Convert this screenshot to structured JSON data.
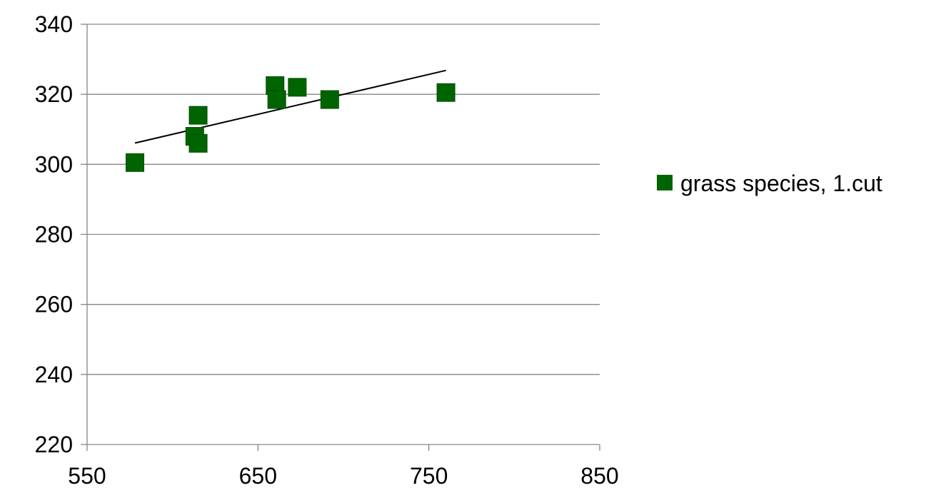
{
  "chart_data": {
    "type": "scatter",
    "title": "",
    "xlabel": "",
    "ylabel": "",
    "xlim": [
      550,
      850
    ],
    "ylim": [
      220,
      340
    ],
    "x_ticks": [
      550,
      650,
      750,
      850
    ],
    "y_ticks": [
      220,
      240,
      260,
      280,
      300,
      320,
      340
    ],
    "x_tick_labels": [
      "550",
      "650",
      "750",
      "850"
    ],
    "y_tick_labels": [
      "220",
      "240",
      "260",
      "280",
      "300",
      "320",
      "340"
    ],
    "grid": "horizontal",
    "legend": {
      "placement": "right",
      "entries": [
        "grass species, 1.cut"
      ]
    },
    "series": [
      {
        "name": "grass species, 1.cut",
        "color": "#006400",
        "marker": "square",
        "points": [
          {
            "x": 578,
            "y": 300.5
          },
          {
            "x": 613,
            "y": 308
          },
          {
            "x": 615,
            "y": 306
          },
          {
            "x": 615,
            "y": 314
          },
          {
            "x": 660,
            "y": 322.5
          },
          {
            "x": 661,
            "y": 318.5
          },
          {
            "x": 673,
            "y": 322
          },
          {
            "x": 692,
            "y": 318.5
          },
          {
            "x": 760,
            "y": 320.5
          }
        ]
      }
    ],
    "trendline": {
      "type": "linear",
      "color": "#000000",
      "x_start": 578,
      "x_end": 760
    }
  }
}
